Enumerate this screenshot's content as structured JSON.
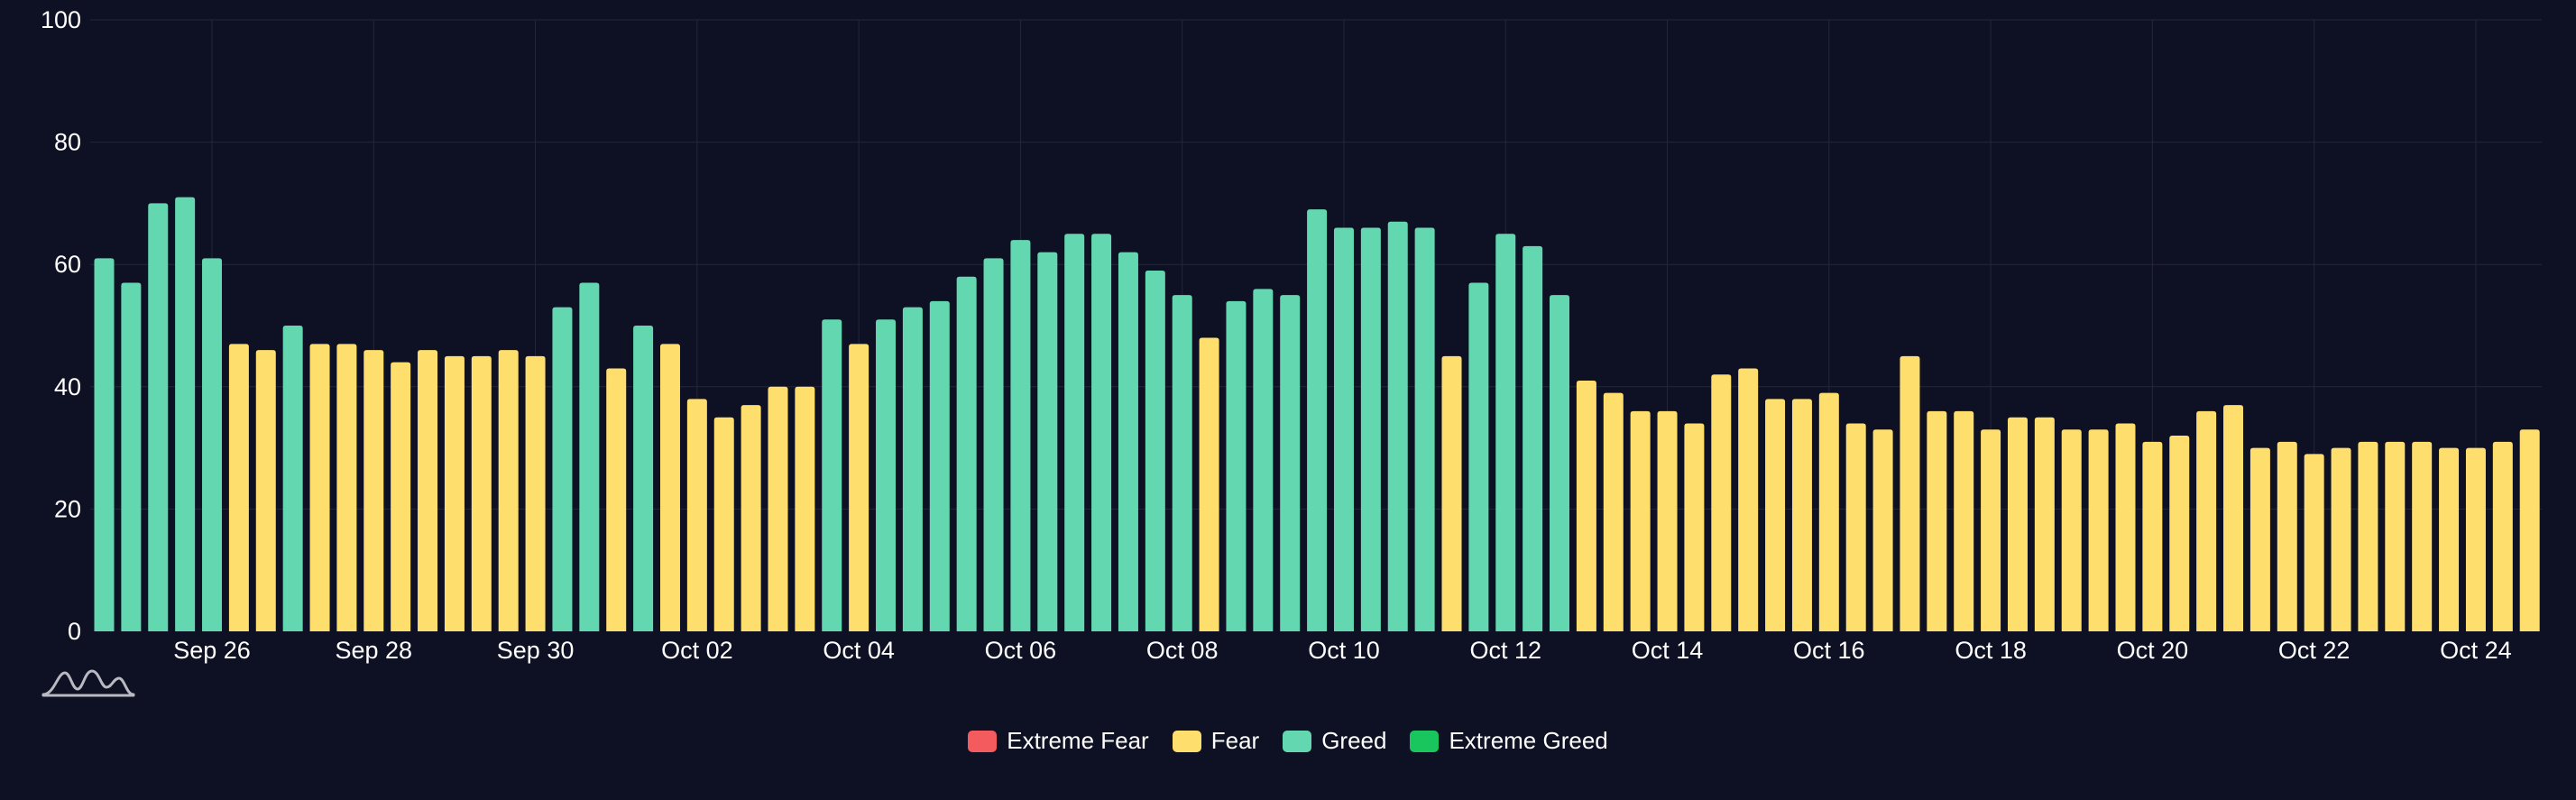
{
  "chart_data": {
    "type": "bar",
    "title": "",
    "xlabel": "",
    "ylabel": "",
    "ylim": [
      0,
      100
    ],
    "yticks": [
      "0",
      "20",
      "40",
      "60",
      "80",
      "100"
    ],
    "x_tick_labels": [
      "Sep 26",
      "Sep 28",
      "Sep 30",
      "Oct 02",
      "Oct 04",
      "Oct 06",
      "Oct 08",
      "Oct 10",
      "Oct 12",
      "Oct 14",
      "Oct 16",
      "Oct 18",
      "Oct 20",
      "Oct 22",
      "Oct 24"
    ],
    "x_tick_bar_index": [
      4,
      10,
      16,
      22,
      28,
      34,
      40,
      46,
      52,
      58,
      64,
      70,
      76,
      82,
      88
    ],
    "values": [
      61,
      57,
      70,
      71,
      61,
      47,
      46,
      50,
      47,
      47,
      46,
      44,
      46,
      45,
      45,
      46,
      45,
      53,
      57,
      43,
      50,
      47,
      38,
      35,
      37,
      40,
      40,
      51,
      47,
      51,
      53,
      54,
      58,
      61,
      64,
      62,
      65,
      65,
      62,
      59,
      55,
      48,
      54,
      56,
      55,
      69,
      66,
      66,
      67,
      66,
      45,
      57,
      65,
      63,
      55,
      41,
      39,
      36,
      36,
      34,
      42,
      43,
      38,
      38,
      39,
      34,
      33,
      45,
      36,
      36,
      33,
      35,
      35,
      33,
      33,
      34,
      31,
      32,
      36,
      37,
      30,
      31,
      29,
      30,
      31,
      31,
      31,
      30,
      30,
      31,
      33
    ],
    "categories_by_value": [
      {
        "name": "Extreme Fear",
        "min": 0,
        "max": 24
      },
      {
        "name": "Fear",
        "min": 25,
        "max": 49
      },
      {
        "name": "Greed",
        "min": 50,
        "max": 74
      },
      {
        "name": "Extreme Greed",
        "min": 75,
        "max": 100
      }
    ],
    "legend": [
      {
        "label": "Extreme Fear",
        "color": "#f35b5f"
      },
      {
        "label": "Fear",
        "color": "#fede6c"
      },
      {
        "label": "Greed",
        "color": "#63d7b0"
      },
      {
        "label": "Extreme Greed",
        "color": "#19c55d"
      }
    ],
    "legend_position": "bottom-center",
    "grid": true
  },
  "colors": {
    "background": "#0e1023",
    "grid": "#24263a",
    "axis_text": "#ffffff",
    "watermark": "#b9b9c2"
  },
  "watermark_icon": "wave-logo-icon"
}
